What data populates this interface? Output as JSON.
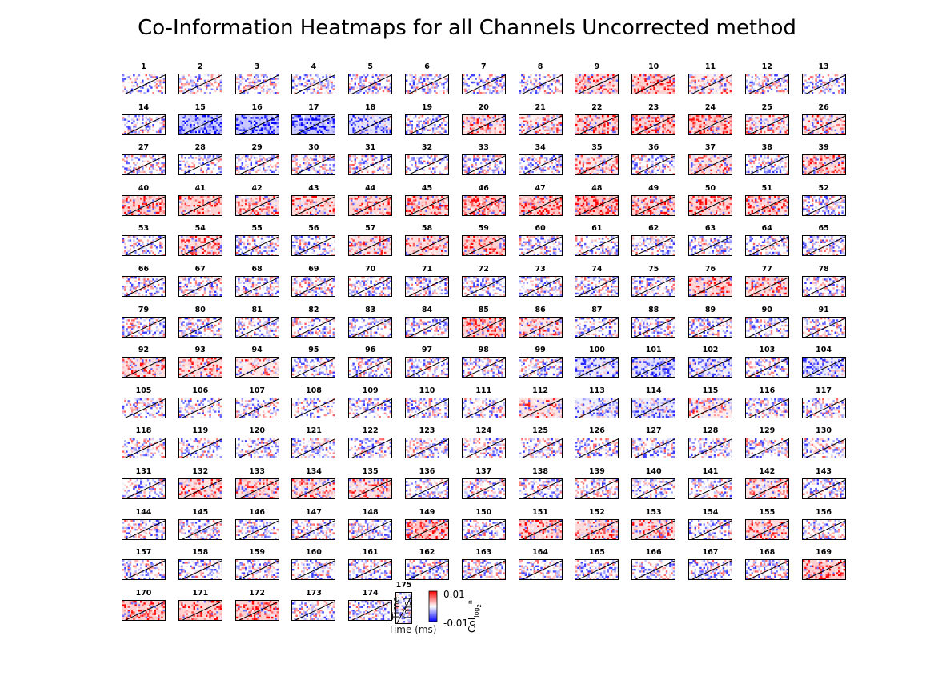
{
  "title": "Co-Information Heatmaps for all Channels Uncorrected method",
  "chart_data": {
    "type": "heatmap",
    "title": "Co-Information Heatmaps for all Channels Uncorrected method",
    "panel_count": 175,
    "panel_labels": [
      "1",
      "2",
      "3",
      "4",
      "5",
      "6",
      "7",
      "8",
      "9",
      "10",
      "11",
      "12",
      "13",
      "14",
      "15",
      "16",
      "17",
      "18",
      "19",
      "20",
      "21",
      "22",
      "23",
      "24",
      "25",
      "26",
      "27",
      "28",
      "29",
      "30",
      "31",
      "32",
      "33",
      "34",
      "35",
      "36",
      "37",
      "38",
      "39",
      "40",
      "41",
      "42",
      "43",
      "44",
      "45",
      "46",
      "47",
      "48",
      "49",
      "50",
      "51",
      "52",
      "53",
      "54",
      "55",
      "56",
      "57",
      "58",
      "59",
      "60",
      "61",
      "62",
      "63",
      "64",
      "65",
      "66",
      "67",
      "68",
      "69",
      "70",
      "71",
      "72",
      "73",
      "74",
      "75",
      "76",
      "77",
      "78",
      "79",
      "80",
      "81",
      "82",
      "83",
      "84",
      "85",
      "86",
      "87",
      "88",
      "89",
      "90",
      "91",
      "92",
      "93",
      "94",
      "95",
      "96",
      "97",
      "98",
      "99",
      "100",
      "101",
      "102",
      "103",
      "104",
      "105",
      "106",
      "107",
      "108",
      "109",
      "110",
      "111",
      "112",
      "113",
      "114",
      "115",
      "116",
      "117",
      "118",
      "119",
      "120",
      "121",
      "122",
      "123",
      "124",
      "125",
      "126",
      "127",
      "128",
      "129",
      "130",
      "131",
      "132",
      "133",
      "134",
      "135",
      "136",
      "137",
      "138",
      "139",
      "140",
      "141",
      "142",
      "143",
      "144",
      "145",
      "146",
      "147",
      "148",
      "149",
      "150",
      "151",
      "152",
      "153",
      "154",
      "155",
      "156",
      "157",
      "158",
      "159",
      "160",
      "161",
      "162",
      "163",
      "164",
      "165",
      "166",
      "167",
      "168",
      "169",
      "170",
      "171",
      "172",
      "173",
      "174",
      "175"
    ],
    "xlabel": "Time (ms)",
    "ylabel": "Time (ms)",
    "colorbar_label": "CoI",
    "colorbar_label_sub": "log",
    "colorbar_label_sub2": "2",
    "colorbar_label_sup": "n",
    "clim": [
      -0.01,
      0.01
    ],
    "colorbar_ticks": [
      "0.01",
      "-0.01"
    ],
    "colormap": [
      "#0000ff",
      "#ffffff",
      "#ff0000"
    ],
    "diagonal": true,
    "panel_bias": {
      "9": 0.6,
      "10": 0.7,
      "11": 0.3,
      "15": -0.8,
      "16": -0.85,
      "17": -0.8,
      "18": -0.5,
      "20": 0.5,
      "21": 0.3,
      "22": 0.65,
      "23": 0.7,
      "24": 0.75,
      "25": 0.3,
      "26": 0.4,
      "35": 0.4,
      "37": 0.45,
      "39": 0.6,
      "40": 0.7,
      "41": 0.7,
      "42": 0.5,
      "43": 0.55,
      "44": 0.65,
      "45": 0.7,
      "46": 0.75,
      "47": 0.85,
      "48": 0.9,
      "49": 0.65,
      "50": 0.7,
      "51": 0.6,
      "54": 0.5,
      "57": 0.45,
      "58": 0.55,
      "59": 0.7,
      "76": 0.6,
      "77": 0.55,
      "85": 0.7,
      "86": 0.4,
      "92": 0.5,
      "93": 0.5,
      "94": 0.35,
      "100": -0.4,
      "101": -0.45,
      "102": -0.3,
      "104": -0.3,
      "112": 0.45,
      "113": -0.2,
      "114": -0.3,
      "115": 0.3,
      "132": 0.5,
      "133": 0.5,
      "134": 0.45,
      "135": 0.5,
      "142": 0.4,
      "149": 0.75,
      "151": 0.6,
      "152": 0.55,
      "153": 0.55,
      "155": 0.6,
      "169": 0.75,
      "170": 0.75,
      "171": 0.7,
      "172": 0.7
    }
  }
}
